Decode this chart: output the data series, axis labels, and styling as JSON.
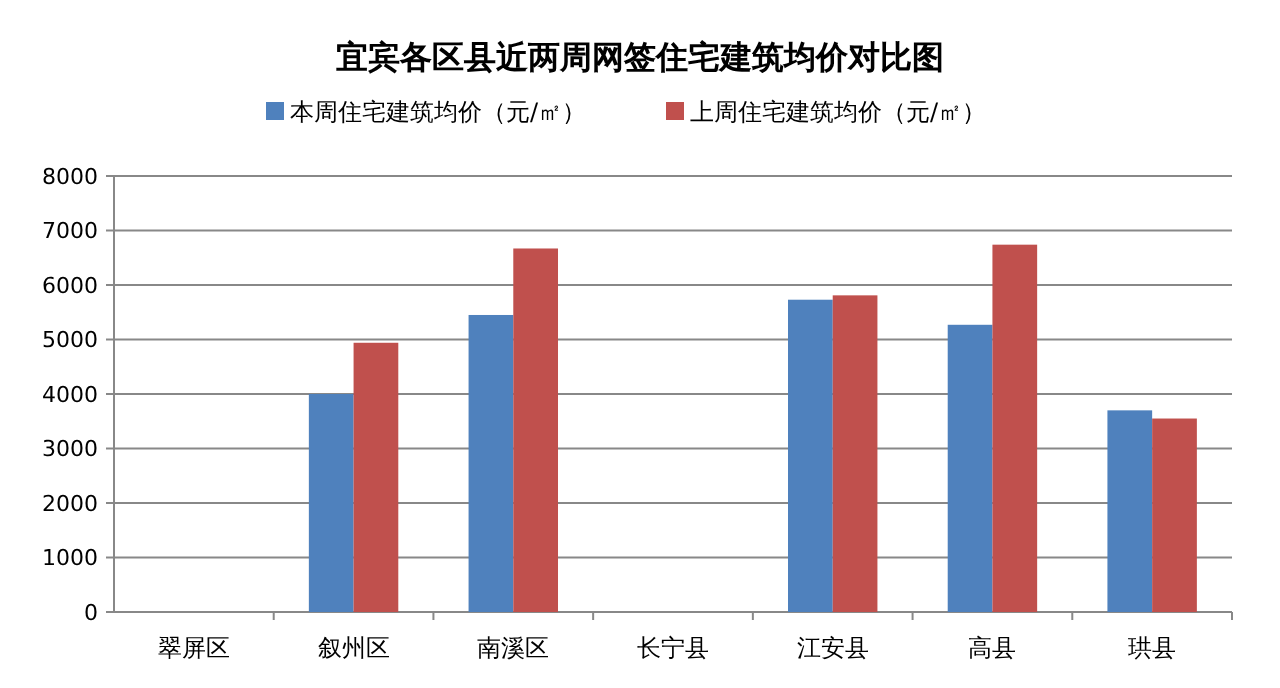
{
  "chart_data": {
    "type": "bar",
    "title": "宜宾各区县近两周网签住宅建筑均价对比图",
    "categories": [
      "翠屏区",
      "叙州区",
      "南溪区",
      "长宁县",
      "江安县",
      "高县",
      "珙县"
    ],
    "series": [
      {
        "name": "本周住宅建筑均价（元/㎡）",
        "color": "#4f81bd",
        "values": [
          null,
          4000,
          5450,
          null,
          5730,
          5270,
          3700
        ]
      },
      {
        "name": "上周住宅建筑均价（元/㎡）",
        "color": "#c0504d",
        "values": [
          null,
          4940,
          6670,
          null,
          5810,
          6740,
          3550
        ]
      }
    ],
    "ylim": [
      0,
      8000
    ],
    "yticks": [
      0,
      1000,
      2000,
      3000,
      4000,
      5000,
      6000,
      7000,
      8000
    ],
    "grid": "y",
    "legend": "top"
  }
}
